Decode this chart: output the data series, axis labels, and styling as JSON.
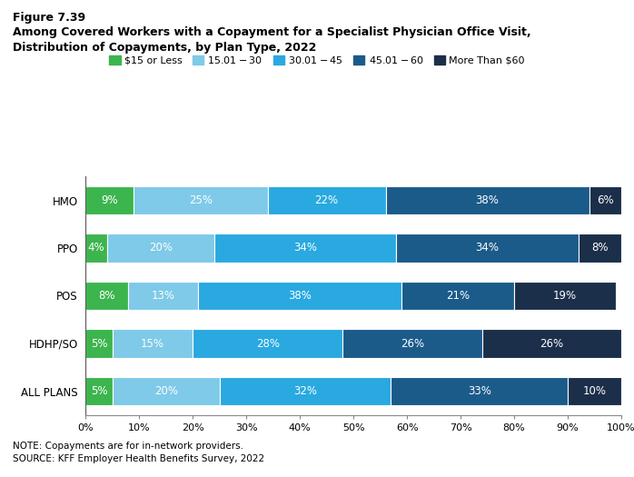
{
  "title_line1": "Figure 7.39",
  "title_line2": "Among Covered Workers with a Copayment for a Specialist Physician Office Visit,",
  "title_line3": "Distribution of Copayments, by Plan Type, 2022",
  "categories": [
    "HMO",
    "PPO",
    "POS",
    "HDHP/SO",
    "ALL PLANS"
  ],
  "legend_labels": [
    "$15 or Less",
    "$15.01 - $30",
    "$30.01 - $45",
    "$45.01 - $60",
    "More Than $60"
  ],
  "colors": [
    "#3cb54e",
    "#7ecae8",
    "#29a9e0",
    "#1b5b8a",
    "#1b2f4a"
  ],
  "data": {
    "HMO": [
      9,
      25,
      22,
      38,
      6
    ],
    "PPO": [
      4,
      20,
      34,
      34,
      8
    ],
    "POS": [
      8,
      13,
      38,
      21,
      19
    ],
    "HDHP/SO": [
      5,
      15,
      28,
      26,
      26
    ],
    "ALL PLANS": [
      5,
      20,
      32,
      33,
      10
    ]
  },
  "note": "NOTE: Copayments are for in-network providers.",
  "source": "SOURCE: KFF Employer Health Benefits Survey, 2022",
  "background_color": "#ffffff",
  "bar_height": 0.6,
  "xlim": [
    0,
    100
  ]
}
